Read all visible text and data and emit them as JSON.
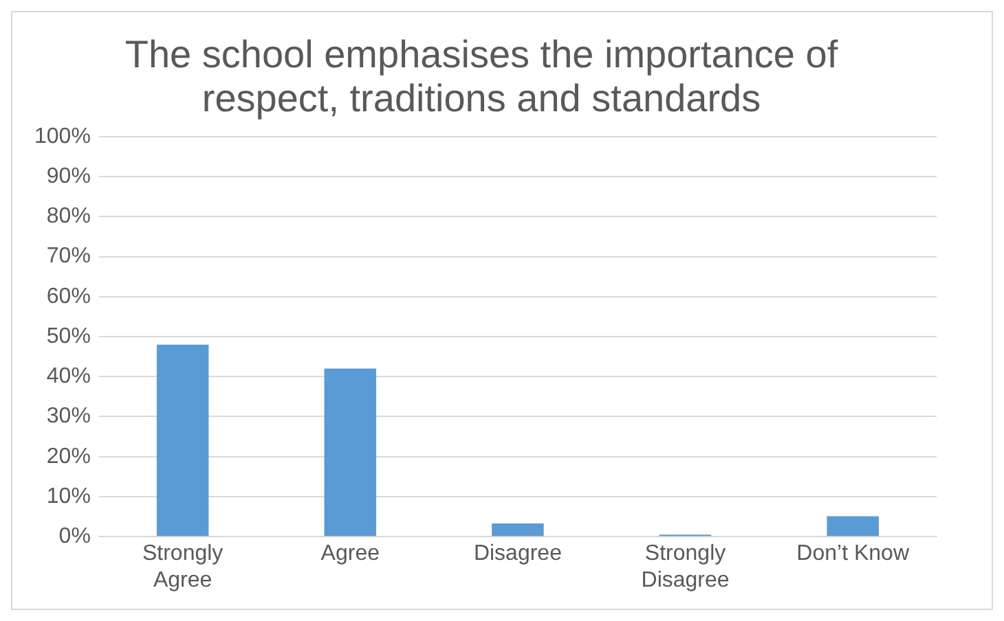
{
  "chart_data": {
    "type": "bar",
    "title": "The school emphasises the importance of respect, traditions and standards",
    "categories": [
      "Strongly Agree",
      "Agree",
      "Disagree",
      "Strongly Disagree",
      "Don’t Know"
    ],
    "values": [
      48,
      42,
      3.3,
      0.5,
      5.1
    ],
    "color": "#5b9bd5",
    "ylim": [
      0,
      100
    ],
    "yticks": [
      {
        "value": 0,
        "label": "0%"
      },
      {
        "value": 10,
        "label": "10%"
      },
      {
        "value": 20,
        "label": "20%"
      },
      {
        "value": 30,
        "label": "30%"
      },
      {
        "value": 40,
        "label": "40%"
      },
      {
        "value": 50,
        "label": "50%"
      },
      {
        "value": 60,
        "label": "60%"
      },
      {
        "value": 70,
        "label": "70%"
      },
      {
        "value": 80,
        "label": "80%"
      },
      {
        "value": 90,
        "label": "90%"
      },
      {
        "value": 100,
        "label": "100%"
      }
    ],
    "grid": "y",
    "legend": false
  }
}
